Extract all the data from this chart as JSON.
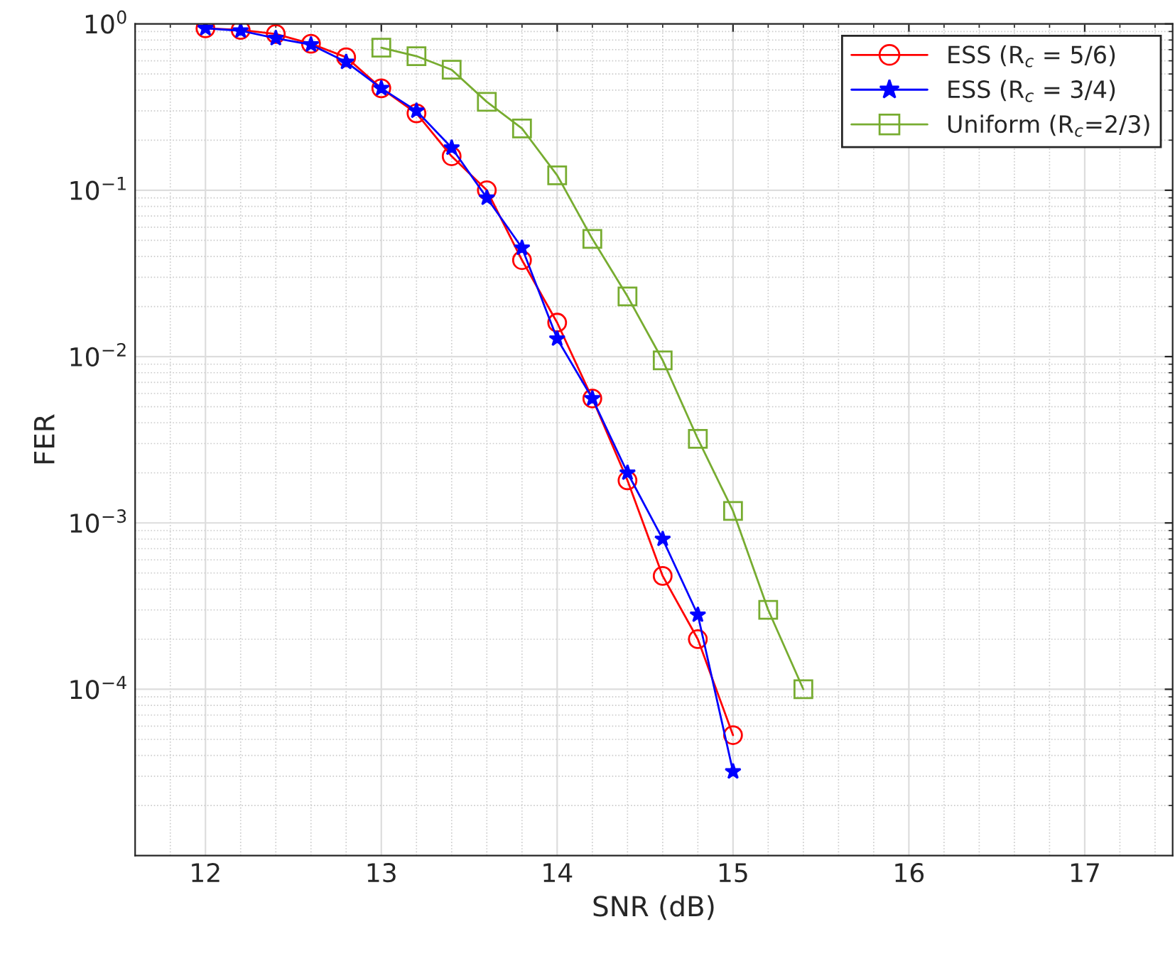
{
  "chart_data": {
    "type": "line",
    "xlabel": "SNR (dB)",
    "ylabel": "FER",
    "log": "y",
    "xlim": [
      11.6,
      17.5
    ],
    "xticks": [
      12,
      13,
      14,
      15,
      16,
      17
    ],
    "ylim": [
      1e-05,
      1
    ],
    "yticks": [
      {
        "value": 0.0001,
        "label": "10$^{−4}$"
      },
      {
        "value": 0.001,
        "label": "10$^{−3}$"
      },
      {
        "value": 0.01,
        "label": "10$^{−2}$"
      },
      {
        "value": 0.1,
        "label": "10$^{−1}$"
      },
      {
        "value": 1,
        "label": "10$^{0}$"
      }
    ],
    "grid": true,
    "legend": "top right",
    "series": [
      {
        "name": "ESS (R$_{c}$ = 5/6)",
        "color": "#ff0000",
        "marker": "circle",
        "x": [
          12,
          12.2,
          12.4,
          12.6,
          12.8,
          13,
          13.2,
          13.4,
          13.6,
          13.8,
          14,
          14.2,
          14.4,
          14.6,
          14.8,
          15
        ],
        "values": [
          0.94,
          0.92,
          0.87,
          0.76,
          0.63,
          0.41,
          0.29,
          0.16,
          0.1,
          0.038,
          0.016,
          0.0056,
          0.0018,
          0.00048,
          0.0002,
          5.3e-05
        ]
      },
      {
        "name": "ESS (R$_{c}$ = 3/4)",
        "color": "#0000ff",
        "marker": "star",
        "x": [
          12,
          12.2,
          12.4,
          12.6,
          12.8,
          13,
          13.2,
          13.4,
          13.6,
          13.8,
          14,
          14.2,
          14.4,
          14.6,
          14.8,
          15
        ],
        "values": [
          0.94,
          0.91,
          0.82,
          0.75,
          0.59,
          0.41,
          0.3,
          0.18,
          0.09,
          0.045,
          0.0128,
          0.0056,
          0.002,
          0.0008,
          0.00028,
          3.2e-05
        ]
      },
      {
        "name": "Uniform (R$_{c}$=2/3)",
        "color": "#77ac30",
        "marker": "square",
        "x": [
          13,
          13.2,
          13.4,
          13.6,
          13.8,
          14,
          14.2,
          14.4,
          14.6,
          14.8,
          15,
          15.2,
          15.4
        ],
        "values": [
          0.72,
          0.64,
          0.53,
          0.34,
          0.235,
          0.123,
          0.051,
          0.023,
          0.0095,
          0.0032,
          0.00118,
          0.0003,
          0.0001
        ]
      }
    ]
  }
}
